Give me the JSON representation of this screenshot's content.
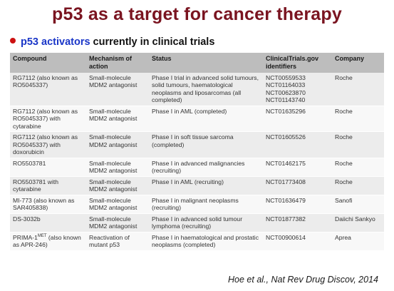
{
  "slide": {
    "title": "p53 as a target for cancer therapy",
    "bullet_highlight": "p53 activators",
    "bullet_rest": " currently in clinical trials",
    "bullet_color": "#cc1111",
    "highlight_color": "#1a36c8",
    "title_color": "#7a1420"
  },
  "table": {
    "headers": {
      "compound": "Compound",
      "mechanism": "Mechanism of action",
      "status": "Status",
      "identifiers": "ClinicalTrials.gov identifiers",
      "company": "Company"
    },
    "rows": [
      {
        "compound": "RG7112 (also known as RO5045337)",
        "compound_sup": "",
        "compound_tail": "",
        "mechanism": "Small-molecule MDM2 antagonist",
        "status": "Phase I trial in advanced solid tumours, solid tumours, haematological neoplasms and liposarcomas (all completed)",
        "identifiers": [
          "NCT00559533",
          "NCT01164033",
          "NCT00623870",
          "NCT01143740"
        ],
        "company": "Roche"
      },
      {
        "compound": "RG7112 (also known as RO5045337) with cytarabine",
        "compound_sup": "",
        "compound_tail": "",
        "mechanism": "Small-molecule MDM2 antagonist",
        "status": "Phase I in AML (completed)",
        "identifiers": [
          "NCT01635296"
        ],
        "company": "Roche"
      },
      {
        "compound": "RG7112 (also known as RO5045337) with doxorubicin",
        "compound_sup": "",
        "compound_tail": "",
        "mechanism": "Small-molecule MDM2 antagonist",
        "status": "Phase I in soft tissue sarcoma (completed)",
        "identifiers": [
          "NCT01605526"
        ],
        "company": "Roche"
      },
      {
        "compound": "RO5503781",
        "compound_sup": "",
        "compound_tail": "",
        "mechanism": "Small-molecule MDM2 antagonist",
        "status": "Phase I in advanced malignancies (recruiting)",
        "identifiers": [
          "NCT01462175"
        ],
        "company": "Roche"
      },
      {
        "compound": "RO5503781 with cytarabine",
        "compound_sup": "",
        "compound_tail": "",
        "mechanism": "Small-molecule MDM2 antagonist",
        "status": "Phase I in AML (recruiting)",
        "identifiers": [
          "NCT01773408"
        ],
        "company": "Roche"
      },
      {
        "compound": "MI-773 (also known as SAR405838)",
        "compound_sup": "",
        "compound_tail": "",
        "mechanism": "Small-molecule MDM2 antagonist",
        "status": "Phase I in malignant neoplasms (recruiting)",
        "identifiers": [
          "NCT01636479"
        ],
        "company": "Sanofi"
      },
      {
        "compound": "DS-3032b",
        "compound_sup": "",
        "compound_tail": "",
        "mechanism": "Small-molecule MDM2 antagonist",
        "status": "Phase I in advanced solid tumour lymphoma (recruiting)",
        "identifiers": [
          "NCT01877382"
        ],
        "company": "Daiichi Sankyo"
      },
      {
        "compound": "PRIMA-1",
        "compound_sup": "MET",
        "compound_tail": " (also known as APR-246)",
        "mechanism": "Reactivation of mutant p53",
        "status": "Phase I in haematological and prostatic neoplasms (completed)",
        "identifiers": [
          "NCT00900614"
        ],
        "company": "Aprea"
      }
    ]
  },
  "citation": "Hoe et al., Nat Rev Drug Discov, 2014"
}
